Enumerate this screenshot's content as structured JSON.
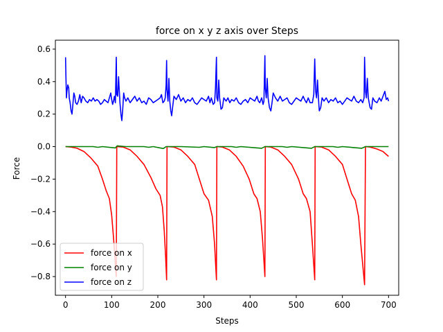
{
  "chart_data": {
    "type": "line",
    "title": "force on x y z axis over Steps",
    "xlabel": "Steps",
    "ylabel": "Force",
    "xlim": [
      -22,
      722
    ],
    "ylim": [
      -0.915,
      0.655
    ],
    "xticks": [
      0,
      100,
      200,
      300,
      400,
      500,
      600,
      700
    ],
    "yticks": [
      -0.8,
      -0.6,
      -0.4,
      -0.2,
      0.0,
      0.2,
      0.4,
      0.6
    ],
    "ytick_labels": [
      "−0.8",
      "−0.6",
      "−0.4",
      "−0.2",
      "0.0",
      "0.2",
      "0.4",
      "0.6"
    ],
    "grid": false,
    "legend_position": "lower-left",
    "series": [
      {
        "name": "force on x",
        "color": "#ff0000",
        "points": [
          [
            0,
            0.0
          ],
          [
            12,
            -0.003
          ],
          [
            25,
            -0.01
          ],
          [
            40,
            -0.03
          ],
          [
            55,
            -0.07
          ],
          [
            70,
            -0.12
          ],
          [
            80,
            -0.2
          ],
          [
            88,
            -0.27
          ],
          [
            95,
            -0.32
          ],
          [
            100,
            -0.42
          ],
          [
            104,
            -0.56
          ],
          [
            107,
            -0.68
          ],
          [
            109,
            -0.77
          ],
          [
            110,
            -0.8
          ],
          [
            111,
            0.0
          ],
          [
            125,
            -0.003
          ],
          [
            140,
            -0.02
          ],
          [
            155,
            -0.06
          ],
          [
            170,
            -0.11
          ],
          [
            185,
            -0.19
          ],
          [
            196,
            -0.26
          ],
          [
            205,
            -0.3
          ],
          [
            210,
            -0.37
          ],
          [
            214,
            -0.52
          ],
          [
            217,
            -0.68
          ],
          [
            219,
            -0.82
          ],
          [
            220,
            0.0
          ],
          [
            235,
            -0.003
          ],
          [
            250,
            -0.02
          ],
          [
            265,
            -0.06
          ],
          [
            280,
            -0.11
          ],
          [
            290,
            -0.2
          ],
          [
            300,
            -0.29
          ],
          [
            310,
            -0.33
          ],
          [
            318,
            -0.43
          ],
          [
            323,
            -0.6
          ],
          [
            327,
            -0.82
          ],
          [
            328,
            0.0
          ],
          [
            340,
            -0.003
          ],
          [
            355,
            -0.02
          ],
          [
            370,
            -0.06
          ],
          [
            385,
            -0.12
          ],
          [
            398,
            -0.2
          ],
          [
            408,
            -0.29
          ],
          [
            415,
            -0.32
          ],
          [
            422,
            -0.4
          ],
          [
            427,
            -0.57
          ],
          [
            432,
            -0.8
          ],
          [
            433,
            0.0
          ],
          [
            445,
            -0.003
          ],
          [
            460,
            -0.02
          ],
          [
            475,
            -0.06
          ],
          [
            490,
            -0.11
          ],
          [
            505,
            -0.2
          ],
          [
            515,
            -0.29
          ],
          [
            522,
            -0.32
          ],
          [
            530,
            -0.4
          ],
          [
            535,
            -0.6
          ],
          [
            540,
            -0.82
          ],
          [
            541,
            0.0
          ],
          [
            555,
            -0.003
          ],
          [
            570,
            -0.02
          ],
          [
            585,
            -0.06
          ],
          [
            600,
            -0.11
          ],
          [
            610,
            -0.2
          ],
          [
            620,
            -0.29
          ],
          [
            628,
            -0.33
          ],
          [
            635,
            -0.43
          ],
          [
            640,
            -0.6
          ],
          [
            648,
            -0.85
          ],
          [
            650,
            0.0
          ],
          [
            660,
            -0.003
          ],
          [
            675,
            -0.015
          ],
          [
            688,
            -0.03
          ],
          [
            700,
            -0.06
          ]
        ]
      },
      {
        "name": "force on y",
        "color": "#008000",
        "points": [
          [
            0,
            0.0
          ],
          [
            60,
            0.0
          ],
          [
            70,
            -0.004
          ],
          [
            80,
            0.0
          ],
          [
            108,
            -0.008
          ],
          [
            112,
            0.005
          ],
          [
            130,
            0.0
          ],
          [
            170,
            0.0
          ],
          [
            180,
            -0.004
          ],
          [
            190,
            0.0
          ],
          [
            212,
            -0.012
          ],
          [
            218,
            0.0
          ],
          [
            250,
            0.0
          ],
          [
            290,
            -0.004
          ],
          [
            300,
            0.0
          ],
          [
            323,
            -0.006
          ],
          [
            328,
            0.0
          ],
          [
            360,
            0.0
          ],
          [
            370,
            -0.004
          ],
          [
            380,
            0.0
          ],
          [
            425,
            -0.01
          ],
          [
            432,
            0.0
          ],
          [
            470,
            0.0
          ],
          [
            480,
            -0.004
          ],
          [
            490,
            0.0
          ],
          [
            533,
            -0.01
          ],
          [
            540,
            0.0
          ],
          [
            580,
            0.0
          ],
          [
            590,
            -0.004
          ],
          [
            600,
            0.0
          ],
          [
            642,
            -0.01
          ],
          [
            650,
            0.0
          ],
          [
            700,
            0.0
          ]
        ]
      },
      {
        "name": "force on z",
        "color": "#0000ff",
        "points": [
          [
            0,
            0.55
          ],
          [
            1,
            0.42
          ],
          [
            2,
            0.3
          ],
          [
            3,
            0.34
          ],
          [
            5,
            0.38
          ],
          [
            7,
            0.36
          ],
          [
            8,
            0.3
          ],
          [
            10,
            0.27
          ],
          [
            12,
            0.22
          ],
          [
            14,
            0.2
          ],
          [
            16,
            0.26
          ],
          [
            18,
            0.33
          ],
          [
            20,
            0.31
          ],
          [
            22,
            0.27
          ],
          [
            25,
            0.26
          ],
          [
            28,
            0.28
          ],
          [
            31,
            0.32
          ],
          [
            34,
            0.27
          ],
          [
            37,
            0.31
          ],
          [
            40,
            0.3
          ],
          [
            44,
            0.28
          ],
          [
            48,
            0.27
          ],
          [
            52,
            0.29
          ],
          [
            56,
            0.28
          ],
          [
            60,
            0.3
          ],
          [
            64,
            0.28
          ],
          [
            68,
            0.29
          ],
          [
            72,
            0.28
          ],
          [
            76,
            0.26
          ],
          [
            80,
            0.27
          ],
          [
            84,
            0.29
          ],
          [
            88,
            0.28
          ],
          [
            92,
            0.27
          ],
          [
            95,
            0.3
          ],
          [
            98,
            0.33
          ],
          [
            100,
            0.29
          ],
          [
            102,
            0.26
          ],
          [
            104,
            0.28
          ],
          [
            106,
            0.31
          ],
          [
            108,
            0.27
          ],
          [
            110,
            0.55
          ],
          [
            111,
            0.32
          ],
          [
            113,
            0.31
          ],
          [
            115,
            0.43
          ],
          [
            116,
            0.37
          ],
          [
            118,
            0.27
          ],
          [
            120,
            0.2
          ],
          [
            122,
            0.16
          ],
          [
            124,
            0.23
          ],
          [
            126,
            0.33
          ],
          [
            128,
            0.3
          ],
          [
            131,
            0.28
          ],
          [
            135,
            0.3
          ],
          [
            140,
            0.27
          ],
          [
            145,
            0.29
          ],
          [
            150,
            0.31
          ],
          [
            155,
            0.28
          ],
          [
            160,
            0.3
          ],
          [
            165,
            0.27
          ],
          [
            170,
            0.28
          ],
          [
            175,
            0.26
          ],
          [
            180,
            0.3
          ],
          [
            185,
            0.29
          ],
          [
            190,
            0.27
          ],
          [
            195,
            0.28
          ],
          [
            200,
            0.29
          ],
          [
            205,
            0.3
          ],
          [
            208,
            0.32
          ],
          [
            211,
            0.27
          ],
          [
            214,
            0.28
          ],
          [
            216,
            0.3
          ],
          [
            218,
            0.38
          ],
          [
            219,
            0.53
          ],
          [
            220,
            0.35
          ],
          [
            222,
            0.28
          ],
          [
            224,
            0.42
          ],
          [
            226,
            0.28
          ],
          [
            228,
            0.22
          ],
          [
            230,
            0.19
          ],
          [
            232,
            0.24
          ],
          [
            235,
            0.31
          ],
          [
            240,
            0.29
          ],
          [
            245,
            0.32
          ],
          [
            250,
            0.28
          ],
          [
            255,
            0.3
          ],
          [
            260,
            0.27
          ],
          [
            265,
            0.29
          ],
          [
            270,
            0.28
          ],
          [
            275,
            0.3
          ],
          [
            280,
            0.27
          ],
          [
            285,
            0.26
          ],
          [
            290,
            0.28
          ],
          [
            295,
            0.3
          ],
          [
            300,
            0.29
          ],
          [
            305,
            0.28
          ],
          [
            310,
            0.31
          ],
          [
            313,
            0.27
          ],
          [
            316,
            0.3
          ],
          [
            320,
            0.26
          ],
          [
            323,
            0.27
          ],
          [
            325,
            0.36
          ],
          [
            327,
            0.55
          ],
          [
            328,
            0.3
          ],
          [
            330,
            0.28
          ],
          [
            332,
            0.41
          ],
          [
            334,
            0.3
          ],
          [
            337,
            0.23
          ],
          [
            340,
            0.24
          ],
          [
            343,
            0.3
          ],
          [
            348,
            0.28
          ],
          [
            352,
            0.3
          ],
          [
            356,
            0.27
          ],
          [
            360,
            0.29
          ],
          [
            365,
            0.28
          ],
          [
            370,
            0.3
          ],
          [
            375,
            0.27
          ],
          [
            380,
            0.26
          ],
          [
            385,
            0.28
          ],
          [
            390,
            0.29
          ],
          [
            395,
            0.27
          ],
          [
            400,
            0.3
          ],
          [
            405,
            0.29
          ],
          [
            410,
            0.28
          ],
          [
            415,
            0.31
          ],
          [
            418,
            0.28
          ],
          [
            421,
            0.27
          ],
          [
            425,
            0.3
          ],
          [
            428,
            0.26
          ],
          [
            430,
            0.28
          ],
          [
            432,
            0.56
          ],
          [
            433,
            0.36
          ],
          [
            435,
            0.3
          ],
          [
            437,
            0.42
          ],
          [
            439,
            0.3
          ],
          [
            442,
            0.24
          ],
          [
            445,
            0.22
          ],
          [
            448,
            0.28
          ],
          [
            450,
            0.33
          ],
          [
            455,
            0.3
          ],
          [
            460,
            0.28
          ],
          [
            465,
            0.31
          ],
          [
            470,
            0.28
          ],
          [
            475,
            0.29
          ],
          [
            480,
            0.3
          ],
          [
            485,
            0.27
          ],
          [
            490,
            0.26
          ],
          [
            495,
            0.28
          ],
          [
            500,
            0.3
          ],
          [
            505,
            0.29
          ],
          [
            510,
            0.28
          ],
          [
            515,
            0.31
          ],
          [
            518,
            0.29
          ],
          [
            522,
            0.27
          ],
          [
            526,
            0.3
          ],
          [
            530,
            0.27
          ],
          [
            535,
            0.27
          ],
          [
            538,
            0.32
          ],
          [
            540,
            0.54
          ],
          [
            542,
            0.34
          ],
          [
            544,
            0.3
          ],
          [
            546,
            0.41
          ],
          [
            548,
            0.3
          ],
          [
            550,
            0.22
          ],
          [
            553,
            0.24
          ],
          [
            556,
            0.3
          ],
          [
            560,
            0.28
          ],
          [
            565,
            0.3
          ],
          [
            570,
            0.27
          ],
          [
            575,
            0.29
          ],
          [
            580,
            0.28
          ],
          [
            585,
            0.3
          ],
          [
            590,
            0.27
          ],
          [
            595,
            0.28
          ],
          [
            600,
            0.26
          ],
          [
            605,
            0.28
          ],
          [
            610,
            0.3
          ],
          [
            615,
            0.29
          ],
          [
            620,
            0.28
          ],
          [
            625,
            0.31
          ],
          [
            630,
            0.28
          ],
          [
            635,
            0.27
          ],
          [
            640,
            0.29
          ],
          [
            644,
            0.27
          ],
          [
            647,
            0.3
          ],
          [
            648,
            0.55
          ],
          [
            650,
            0.34
          ],
          [
            652,
            0.3
          ],
          [
            654,
            0.42
          ],
          [
            656,
            0.3
          ],
          [
            660,
            0.24
          ],
          [
            663,
            0.23
          ],
          [
            666,
            0.3
          ],
          [
            670,
            0.28
          ],
          [
            675,
            0.27
          ],
          [
            680,
            0.3
          ],
          [
            684,
            0.28
          ],
          [
            688,
            0.31
          ],
          [
            692,
            0.34
          ],
          [
            695,
            0.29
          ],
          [
            698,
            0.3
          ],
          [
            700,
            0.28
          ]
        ]
      }
    ]
  }
}
